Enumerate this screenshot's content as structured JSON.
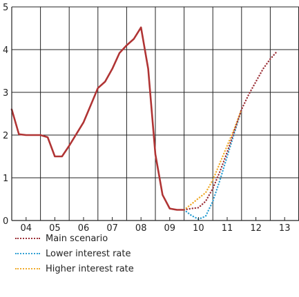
{
  "chart_data": {
    "type": "line",
    "title": "",
    "xlabel": "",
    "ylabel": "",
    "xlim": [
      2004.0,
      2014.0
    ],
    "ylim": [
      0,
      5
    ],
    "y_ticks": [
      "0",
      "1",
      "2",
      "3",
      "4",
      "5"
    ],
    "x_ticks": [
      {
        "label": "04",
        "x": 2004.5
      },
      {
        "label": "05",
        "x": 2005.5
      },
      {
        "label": "06",
        "x": 2006.5
      },
      {
        "label": "07",
        "x": 2007.5
      },
      {
        "label": "08",
        "x": 2008.5
      },
      {
        "label": "09",
        "x": 2009.5
      },
      {
        "label": "10",
        "x": 2010.5
      },
      {
        "label": "11",
        "x": 2011.5
      },
      {
        "label": "12",
        "x": 2012.5
      },
      {
        "label": "13",
        "x": 2013.5
      }
    ],
    "x_gridlines": [
      2005,
      2006,
      2007,
      2008,
      2009,
      2010,
      2011,
      2012,
      2013
    ],
    "grid": true,
    "legend_position": "bottom-left",
    "colors": {
      "historical": "#b03434",
      "main": "#9b2f36",
      "lower": "#2e9fd3",
      "higher": "#f0aa2a",
      "axis": "#222222"
    },
    "historical": {
      "x": [
        2004.0,
        2004.25,
        2004.5,
        2004.75,
        2005.0,
        2005.25,
        2005.5,
        2005.75,
        2006.0,
        2006.5,
        2006.75,
        2007.0,
        2007.25,
        2007.5,
        2007.75,
        2008.0,
        2008.25,
        2008.5,
        2008.75,
        2009.0,
        2009.25,
        2009.5,
        2009.75,
        2010.0
      ],
      "y": [
        2.6,
        2.02,
        2.0,
        2.0,
        2.0,
        1.95,
        1.5,
        1.5,
        1.75,
        2.3,
        2.7,
        3.1,
        3.25,
        3.55,
        3.92,
        4.1,
        4.25,
        4.52,
        3.55,
        1.55,
        0.6,
        0.28,
        0.25,
        0.25
      ]
    },
    "series": [
      {
        "name": "Main scenario",
        "x": [
          2010.0,
          2010.25,
          2010.5,
          2010.75,
          2011.0,
          2011.25,
          2011.5,
          2011.75,
          2012.0,
          2012.25,
          2012.5,
          2012.75,
          2013.0,
          2013.25
        ],
        "y": [
          0.25,
          0.28,
          0.3,
          0.45,
          0.75,
          1.15,
          1.6,
          2.1,
          2.6,
          2.95,
          3.25,
          3.55,
          3.78,
          3.97
        ]
      },
      {
        "name": "Lower interest rate",
        "x": [
          2010.0,
          2010.25,
          2010.5,
          2010.75,
          2011.0,
          2011.25,
          2011.5,
          2011.75,
          2012.0
        ],
        "y": [
          0.25,
          0.12,
          0.03,
          0.1,
          0.45,
          0.95,
          1.5,
          2.05,
          2.6
        ]
      },
      {
        "name": "Higher interest rate",
        "x": [
          2010.0,
          2010.25,
          2010.5,
          2010.75,
          2011.0,
          2011.25,
          2011.5,
          2011.75,
          2012.0
        ],
        "y": [
          0.25,
          0.38,
          0.52,
          0.65,
          0.95,
          1.35,
          1.75,
          2.15,
          2.6
        ]
      }
    ]
  }
}
